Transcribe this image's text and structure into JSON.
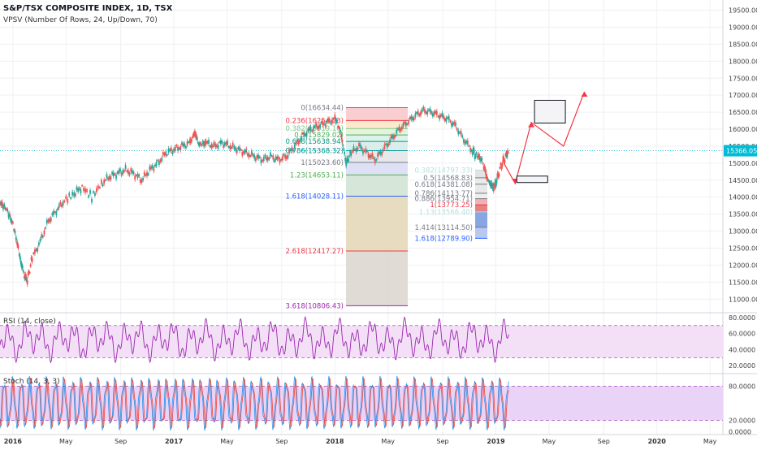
{
  "chart_data": {
    "type": "line",
    "title": "S&P/TSX COMPOSITE INDEX, 1D, TSX",
    "indicator_label": "VPSV (Number Of Rows, 24, Up/Down, 70)",
    "last_price_label": "15366.05",
    "x_ticks": [
      "2016",
      "May",
      "Sep",
      "2017",
      "May",
      "Sep",
      "2018",
      "May",
      "Sep",
      "2019",
      "May",
      "Sep",
      "2020",
      "May"
    ],
    "price_axis": {
      "min": 10600,
      "max": 19800,
      "ticks": [
        "19500.00",
        "19000.00",
        "18500.00",
        "18000.00",
        "17500.00",
        "17000.00",
        "16500.00",
        "16000.00",
        "15500.00",
        "15000.00",
        "14500.00",
        "14000.00",
        "13500.00",
        "13000.00",
        "12500.00",
        "12000.00",
        "11500.00",
        "11000.00"
      ]
    },
    "price_series": [
      [
        2015.92,
        13900
      ],
      [
        2015.96,
        13700
      ],
      [
        2016.0,
        13200
      ],
      [
        2016.04,
        12300
      ],
      [
        2016.07,
        11700
      ],
      [
        2016.09,
        11550
      ],
      [
        2016.12,
        12200
      ],
      [
        2016.17,
        12700
      ],
      [
        2016.22,
        13300
      ],
      [
        2016.27,
        13600
      ],
      [
        2016.32,
        13900
      ],
      [
        2016.38,
        14100
      ],
      [
        2016.43,
        14300
      ],
      [
        2016.49,
        14000
      ],
      [
        2016.55,
        14400
      ],
      [
        2016.6,
        14600
      ],
      [
        2016.65,
        14700
      ],
      [
        2016.7,
        14800
      ],
      [
        2016.75,
        14700
      ],
      [
        2016.8,
        14500
      ],
      [
        2016.85,
        14800
      ],
      [
        2016.9,
        15000
      ],
      [
        2016.95,
        15300
      ],
      [
        2017.0,
        15400
      ],
      [
        2017.05,
        15500
      ],
      [
        2017.1,
        15600
      ],
      [
        2017.13,
        15900
      ],
      [
        2017.16,
        15500
      ],
      [
        2017.2,
        15600
      ],
      [
        2017.25,
        15500
      ],
      [
        2017.3,
        15600
      ],
      [
        2017.35,
        15500
      ],
      [
        2017.4,
        15400
      ],
      [
        2017.45,
        15300
      ],
      [
        2017.5,
        15200
      ],
      [
        2017.55,
        15100
      ],
      [
        2017.6,
        15200
      ],
      [
        2017.65,
        15100
      ],
      [
        2017.7,
        15200
      ],
      [
        2017.75,
        15500
      ],
      [
        2017.8,
        15800
      ],
      [
        2017.85,
        16000
      ],
      [
        2017.9,
        16100
      ],
      [
        2017.95,
        16200
      ],
      [
        2018.0,
        16300
      ],
      [
        2018.04,
        15800
      ],
      [
        2018.07,
        15000
      ],
      [
        2018.1,
        15300
      ],
      [
        2018.15,
        15500
      ],
      [
        2018.2,
        15300
      ],
      [
        2018.25,
        15100
      ],
      [
        2018.3,
        15400
      ],
      [
        2018.35,
        15700
      ],
      [
        2018.4,
        16000
      ],
      [
        2018.45,
        16200
      ],
      [
        2018.5,
        16400
      ],
      [
        2018.55,
        16550
      ],
      [
        2018.6,
        16500
      ],
      [
        2018.65,
        16400
      ],
      [
        2018.7,
        16300
      ],
      [
        2018.75,
        16100
      ],
      [
        2018.8,
        15700
      ],
      [
        2018.85,
        15400
      ],
      [
        2018.88,
        15200
      ],
      [
        2018.92,
        15000
      ],
      [
        2018.95,
        14500
      ],
      [
        2018.98,
        14300
      ],
      [
        2019.0,
        14400
      ],
      [
        2019.03,
        14900
      ],
      [
        2019.06,
        15200
      ],
      [
        2019.08,
        15366
      ]
    ],
    "fibonacci_left": [
      {
        "label": "0(16634.44)",
        "value": 16634.44,
        "color": "#787b86"
      },
      {
        "label": "0.236(16254.23)",
        "value": 16254.23,
        "color": "#f23645"
      },
      {
        "label": "0.382(16019.10)",
        "value": 16019.1,
        "color": "#81c784"
      },
      {
        "label": "0.5(15829.02)",
        "value": 15829.02,
        "color": "#4caf50"
      },
      {
        "label": "0.618(15638.94)",
        "value": 15638.94,
        "color": "#089981"
      },
      {
        "label": "0.786(15368.32)",
        "value": 15368.32,
        "color": "#00897b"
      },
      {
        "label": "1(15023.60)",
        "value": 15023.6,
        "color": "#787b86"
      },
      {
        "label": "1.23(14653.11)",
        "value": 14653.11,
        "color": "#4caf50"
      },
      {
        "label": "1.618(14028.11)",
        "value": 14028.11,
        "color": "#2962ff"
      },
      {
        "label": "2.618(12417.27)",
        "value": 12417.27,
        "color": "#f23645"
      },
      {
        "label": "3.618(10806.43)",
        "value": 10806.43,
        "color": "#9c27b0"
      }
    ],
    "fibonacci_right": [
      {
        "label": "0.382(14797.33)",
        "value": 14797.33,
        "color": "#b2dfdb"
      },
      {
        "label": "0.5(14568.83)",
        "value": 14568.83,
        "color": "#787b86"
      },
      {
        "label": "0.618(14381.08)",
        "value": 14381.08,
        "color": "#787b86"
      },
      {
        "label": "0.786(14113.77)",
        "value": 14113.77,
        "color": "#787b86"
      },
      {
        "label": "0.886(13954.71)",
        "value": 13954.71,
        "color": "#787b86"
      },
      {
        "label": "1(13773.25)",
        "value": 13773.25,
        "color": "#f23645"
      },
      {
        "label": "1.13(13566.40)",
        "value": 13566.4,
        "color": "#b2dfdb"
      },
      {
        "label": "1.414(13114.50)",
        "value": 13114.5,
        "color": "#787b86"
      },
      {
        "label": "1.618(12789.90)",
        "value": 12789.9,
        "color": "#2962ff"
      }
    ],
    "projection_path": [
      [
        2019.05,
        15000
      ],
      [
        2019.12,
        14400
      ],
      [
        2019.22,
        16200
      ],
      [
        2019.42,
        15500
      ],
      [
        2019.55,
        17100
      ]
    ],
    "rsi": {
      "label": "RSI (14, close)",
      "axis": {
        "min": 10,
        "max": 86,
        "ticks": [
          "80.0000",
          "60.0000",
          "40.0000",
          "20.0000"
        ]
      },
      "upper_band": 70,
      "lower_band": 30
    },
    "stoch": {
      "label": "Stoch (14, 3, 3)",
      "axis": {
        "min": -5,
        "max": 102,
        "ticks": [
          "80.0000",
          "20.0000",
          "0.0000"
        ]
      },
      "upper_band": 80,
      "lower_band": 20
    },
    "grid": true,
    "colors": {
      "rsi_line": "#9c27b0",
      "stoch_k": "#2196f3",
      "stoch_d": "#f44336",
      "price_up": "#26a69a",
      "price_down": "#ef5350",
      "projection": "#f23645",
      "last_price": "#00bcd4"
    }
  }
}
